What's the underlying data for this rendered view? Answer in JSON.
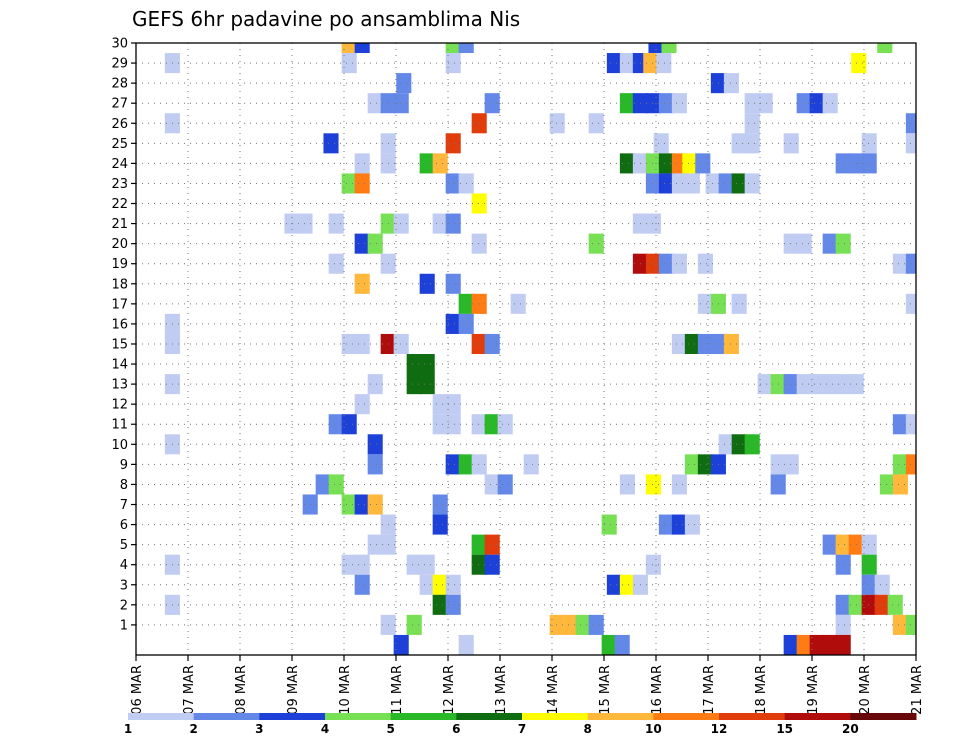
{
  "chart_data": {
    "type": "heatmap",
    "title": "GEFS 6hr padavine po ansamblima Nis",
    "x_tick_labels": [
      "06 MAR",
      "07 MAR",
      "08 MAR",
      "09 MAR",
      "10 MAR",
      "11 MAR",
      "12 MAR",
      "13 MAR",
      "14 MAR",
      "15 MAR",
      "16 MAR",
      "17 MAR",
      "18 MAR",
      "19 MAR",
      "20 MAR",
      "21 MAR"
    ],
    "x_start_day": 6,
    "x_end_day": 21,
    "y_ticks": [
      1,
      2,
      3,
      4,
      5,
      6,
      7,
      8,
      9,
      10,
      11,
      12,
      13,
      14,
      15,
      16,
      17,
      18,
      19,
      20,
      21,
      22,
      23,
      24,
      25,
      26,
      27,
      28,
      29,
      30
    ],
    "ylim": [
      0,
      30
    ],
    "grid": true,
    "colorbar": {
      "labels": [
        "1",
        "2",
        "3",
        "4",
        "5",
        "6",
        "7",
        "8",
        "10",
        "12",
        "15",
        "20"
      ],
      "colors": [
        "#c0ccf2",
        "#6488e8",
        "#1c40d8",
        "#78e054",
        "#28b828",
        "#106c10",
        "#ffff00",
        "#ffb83c",
        "#ff7c14",
        "#e03c0c",
        "#b00c0c",
        "#680808"
      ]
    },
    "cells": [
      {
        "x": 10.1,
        "y": 30,
        "c": 7
      },
      {
        "x": 10.35,
        "y": 30,
        "c": 2
      },
      {
        "x": 12.1,
        "y": 30,
        "c": 3
      },
      {
        "x": 12.35,
        "y": 30,
        "c": 1
      },
      {
        "x": 16.0,
        "y": 30,
        "c": 2
      },
      {
        "x": 16.25,
        "y": 30,
        "c": 3
      },
      {
        "x": 20.4,
        "y": 30,
        "c": 3
      },
      {
        "x": 6.7,
        "y": 29,
        "c": 0
      },
      {
        "x": 10.1,
        "y": 29,
        "c": 0
      },
      {
        "x": 12.1,
        "y": 29,
        "c": 0
      },
      {
        "x": 15.2,
        "y": 29,
        "c": 2
      },
      {
        "x": 15.45,
        "y": 29,
        "c": 0
      },
      {
        "x": 15.7,
        "y": 29,
        "c": 2
      },
      {
        "x": 15.9,
        "y": 29,
        "c": 7
      },
      {
        "x": 16.15,
        "y": 29,
        "c": 0
      },
      {
        "x": 19.9,
        "y": 29,
        "c": 6
      },
      {
        "x": 11.15,
        "y": 28,
        "c": 1
      },
      {
        "x": 17.2,
        "y": 28,
        "c": 2
      },
      {
        "x": 17.45,
        "y": 28,
        "c": 0
      },
      {
        "x": 10.6,
        "y": 27,
        "c": 0
      },
      {
        "x": 10.85,
        "y": 27,
        "c": 1
      },
      {
        "x": 11.1,
        "y": 27,
        "c": 1
      },
      {
        "x": 12.85,
        "y": 27,
        "c": 1
      },
      {
        "x": 15.45,
        "y": 27,
        "c": 4
      },
      {
        "x": 15.7,
        "y": 27,
        "c": 2
      },
      {
        "x": 15.95,
        "y": 27,
        "c": 2
      },
      {
        "x": 16.2,
        "y": 27,
        "c": 1
      },
      {
        "x": 16.45,
        "y": 27,
        "c": 0
      },
      {
        "x": 17.85,
        "y": 27,
        "c": 0
      },
      {
        "x": 18.1,
        "y": 27,
        "c": 0
      },
      {
        "x": 18.85,
        "y": 27,
        "c": 1
      },
      {
        "x": 19.1,
        "y": 27,
        "c": 2
      },
      {
        "x": 19.35,
        "y": 27,
        "c": 0
      },
      {
        "x": 6.7,
        "y": 26,
        "c": 0
      },
      {
        "x": 12.6,
        "y": 26,
        "c": 9
      },
      {
        "x": 14.1,
        "y": 26,
        "c": 0
      },
      {
        "x": 14.85,
        "y": 26,
        "c": 0
      },
      {
        "x": 17.85,
        "y": 26,
        "c": 0
      },
      {
        "x": 20.95,
        "y": 26,
        "c": 1
      },
      {
        "x": 9.75,
        "y": 25,
        "c": 2
      },
      {
        "x": 10.85,
        "y": 25,
        "c": 0
      },
      {
        "x": 12.1,
        "y": 25,
        "c": 9
      },
      {
        "x": 16.1,
        "y": 25,
        "c": 0
      },
      {
        "x": 17.6,
        "y": 25,
        "c": 0
      },
      {
        "x": 17.85,
        "y": 25,
        "c": 0
      },
      {
        "x": 18.6,
        "y": 25,
        "c": 0
      },
      {
        "x": 20.1,
        "y": 25,
        "c": 0
      },
      {
        "x": 20.95,
        "y": 25,
        "c": 0
      },
      {
        "x": 10.35,
        "y": 24,
        "c": 0
      },
      {
        "x": 10.85,
        "y": 24,
        "c": 0
      },
      {
        "x": 11.6,
        "y": 24,
        "c": 4
      },
      {
        "x": 11.85,
        "y": 24,
        "c": 7
      },
      {
        "x": 15.45,
        "y": 24,
        "c": 5
      },
      {
        "x": 15.7,
        "y": 24,
        "c": 0
      },
      {
        "x": 15.95,
        "y": 24,
        "c": 3
      },
      {
        "x": 16.2,
        "y": 24,
        "c": 5
      },
      {
        "x": 16.45,
        "y": 24,
        "c": 8
      },
      {
        "x": 16.65,
        "y": 24,
        "c": 6
      },
      {
        "x": 16.9,
        "y": 24,
        "c": 1
      },
      {
        "x": 19.6,
        "y": 24,
        "c": 1
      },
      {
        "x": 19.85,
        "y": 24,
        "c": 1
      },
      {
        "x": 20.1,
        "y": 24,
        "c": 1
      },
      {
        "x": 10.1,
        "y": 23,
        "c": 3
      },
      {
        "x": 10.35,
        "y": 23,
        "c": 8
      },
      {
        "x": 12.1,
        "y": 23,
        "c": 1
      },
      {
        "x": 12.35,
        "y": 23,
        "c": 0
      },
      {
        "x": 15.95,
        "y": 23,
        "c": 1
      },
      {
        "x": 16.2,
        "y": 23,
        "c": 2
      },
      {
        "x": 16.45,
        "y": 23,
        "c": 0
      },
      {
        "x": 16.7,
        "y": 23,
        "c": 0
      },
      {
        "x": 17.1,
        "y": 23,
        "c": 0
      },
      {
        "x": 17.35,
        "y": 23,
        "c": 1
      },
      {
        "x": 17.6,
        "y": 23,
        "c": 5
      },
      {
        "x": 17.85,
        "y": 23,
        "c": 0
      },
      {
        "x": 12.6,
        "y": 22,
        "c": 6
      },
      {
        "x": 9.0,
        "y": 21,
        "c": 0
      },
      {
        "x": 9.25,
        "y": 21,
        "c": 0
      },
      {
        "x": 9.85,
        "y": 21,
        "c": 0
      },
      {
        "x": 10.85,
        "y": 21,
        "c": 3
      },
      {
        "x": 11.1,
        "y": 21,
        "c": 0
      },
      {
        "x": 11.85,
        "y": 21,
        "c": 0
      },
      {
        "x": 12.1,
        "y": 21,
        "c": 1
      },
      {
        "x": 15.7,
        "y": 21,
        "c": 0
      },
      {
        "x": 15.95,
        "y": 21,
        "c": 0
      },
      {
        "x": 10.35,
        "y": 20,
        "c": 2
      },
      {
        "x": 10.6,
        "y": 20,
        "c": 3
      },
      {
        "x": 12.6,
        "y": 20,
        "c": 0
      },
      {
        "x": 14.85,
        "y": 20,
        "c": 3
      },
      {
        "x": 18.6,
        "y": 20,
        "c": 0
      },
      {
        "x": 18.85,
        "y": 20,
        "c": 0
      },
      {
        "x": 19.35,
        "y": 20,
        "c": 1
      },
      {
        "x": 19.6,
        "y": 20,
        "c": 3
      },
      {
        "x": 9.85,
        "y": 19,
        "c": 0
      },
      {
        "x": 10.85,
        "y": 19,
        "c": 0
      },
      {
        "x": 15.7,
        "y": 19,
        "c": 10
      },
      {
        "x": 15.95,
        "y": 19,
        "c": 9
      },
      {
        "x": 16.2,
        "y": 19,
        "c": 1
      },
      {
        "x": 16.45,
        "y": 19,
        "c": 0
      },
      {
        "x": 16.95,
        "y": 19,
        "c": 0
      },
      {
        "x": 20.7,
        "y": 19,
        "c": 0
      },
      {
        "x": 20.95,
        "y": 19,
        "c": 1
      },
      {
        "x": 10.35,
        "y": 18,
        "c": 7
      },
      {
        "x": 11.6,
        "y": 18,
        "c": 2
      },
      {
        "x": 12.1,
        "y": 18,
        "c": 1
      },
      {
        "x": 12.35,
        "y": 17,
        "c": 4
      },
      {
        "x": 12.6,
        "y": 17,
        "c": 8
      },
      {
        "x": 13.35,
        "y": 17,
        "c": 0
      },
      {
        "x": 16.95,
        "y": 17,
        "c": 0
      },
      {
        "x": 17.2,
        "y": 17,
        "c": 3
      },
      {
        "x": 17.6,
        "y": 17,
        "c": 0
      },
      {
        "x": 20.95,
        "y": 17,
        "c": 0
      },
      {
        "x": 6.7,
        "y": 16,
        "c": 0
      },
      {
        "x": 12.1,
        "y": 16,
        "c": 2
      },
      {
        "x": 12.35,
        "y": 16,
        "c": 1
      },
      {
        "x": 6.7,
        "y": 15,
        "c": 0
      },
      {
        "x": 10.1,
        "y": 15,
        "c": 0
      },
      {
        "x": 10.35,
        "y": 15,
        "c": 0
      },
      {
        "x": 10.85,
        "y": 15,
        "c": 10
      },
      {
        "x": 11.1,
        "y": 15,
        "c": 0
      },
      {
        "x": 12.6,
        "y": 15,
        "c": 9
      },
      {
        "x": 12.85,
        "y": 15,
        "c": 1
      },
      {
        "x": 16.45,
        "y": 15,
        "c": 0
      },
      {
        "x": 16.7,
        "y": 15,
        "c": 5
      },
      {
        "x": 16.95,
        "y": 15,
        "c": 1
      },
      {
        "x": 17.2,
        "y": 15,
        "c": 1
      },
      {
        "x": 17.45,
        "y": 15,
        "c": 7
      },
      {
        "x": 6.7,
        "y": 13,
        "c": 0
      },
      {
        "x": 10.6,
        "y": 13,
        "c": 0
      },
      {
        "x": 11.35,
        "y": 13.5,
        "c": 5,
        "h": 2
      },
      {
        "x": 11.6,
        "y": 13.5,
        "c": 5,
        "h": 2
      },
      {
        "x": 18.1,
        "y": 13,
        "c": 0
      },
      {
        "x": 18.35,
        "y": 13,
        "c": 3
      },
      {
        "x": 18.6,
        "y": 13,
        "c": 1
      },
      {
        "x": 18.85,
        "y": 13,
        "c": 0
      },
      {
        "x": 19.1,
        "y": 13,
        "c": 0
      },
      {
        "x": 19.35,
        "y": 13,
        "c": 0
      },
      {
        "x": 19.6,
        "y": 13,
        "c": 0
      },
      {
        "x": 19.85,
        "y": 13,
        "c": 0
      },
      {
        "x": 10.35,
        "y": 12,
        "c": 0
      },
      {
        "x": 11.85,
        "y": 12,
        "c": 0
      },
      {
        "x": 12.1,
        "y": 12,
        "c": 0
      },
      {
        "x": 9.85,
        "y": 11,
        "c": 1
      },
      {
        "x": 10.1,
        "y": 11,
        "c": 2
      },
      {
        "x": 11.85,
        "y": 11,
        "c": 0
      },
      {
        "x": 12.1,
        "y": 11,
        "c": 0
      },
      {
        "x": 12.6,
        "y": 11,
        "c": 0
      },
      {
        "x": 12.85,
        "y": 11,
        "c": 4
      },
      {
        "x": 13.1,
        "y": 11,
        "c": 0
      },
      {
        "x": 20.7,
        "y": 11,
        "c": 1
      },
      {
        "x": 20.95,
        "y": 11,
        "c": 0
      },
      {
        "x": 6.7,
        "y": 10,
        "c": 0
      },
      {
        "x": 10.6,
        "y": 10,
        "c": 2
      },
      {
        "x": 17.35,
        "y": 10,
        "c": 0
      },
      {
        "x": 17.6,
        "y": 10,
        "c": 5
      },
      {
        "x": 17.85,
        "y": 10,
        "c": 4
      },
      {
        "x": 10.6,
        "y": 9,
        "c": 1
      },
      {
        "x": 12.1,
        "y": 9,
        "c": 2
      },
      {
        "x": 12.35,
        "y": 9,
        "c": 4
      },
      {
        "x": 12.6,
        "y": 9,
        "c": 0
      },
      {
        "x": 13.6,
        "y": 9,
        "c": 0
      },
      {
        "x": 16.7,
        "y": 9,
        "c": 3
      },
      {
        "x": 16.95,
        "y": 9,
        "c": 5
      },
      {
        "x": 17.2,
        "y": 9,
        "c": 2
      },
      {
        "x": 18.35,
        "y": 9,
        "c": 0
      },
      {
        "x": 18.6,
        "y": 9,
        "c": 0
      },
      {
        "x": 20.7,
        "y": 9,
        "c": 3
      },
      {
        "x": 20.95,
        "y": 9,
        "c": 8
      },
      {
        "x": 9.6,
        "y": 8,
        "c": 1
      },
      {
        "x": 9.85,
        "y": 8,
        "c": 3
      },
      {
        "x": 12.85,
        "y": 8,
        "c": 0
      },
      {
        "x": 13.1,
        "y": 8,
        "c": 1
      },
      {
        "x": 15.45,
        "y": 8,
        "c": 0
      },
      {
        "x": 15.95,
        "y": 8,
        "c": 6
      },
      {
        "x": 16.45,
        "y": 8,
        "c": 0
      },
      {
        "x": 18.35,
        "y": 8,
        "c": 1
      },
      {
        "x": 20.45,
        "y": 8,
        "c": 3
      },
      {
        "x": 20.7,
        "y": 8,
        "c": 7
      },
      {
        "x": 9.35,
        "y": 7,
        "c": 1
      },
      {
        "x": 10.1,
        "y": 7,
        "c": 3
      },
      {
        "x": 10.35,
        "y": 7,
        "c": 2
      },
      {
        "x": 10.6,
        "y": 7,
        "c": 7
      },
      {
        "x": 11.85,
        "y": 7,
        "c": 1
      },
      {
        "x": 10.85,
        "y": 6,
        "c": 0
      },
      {
        "x": 11.85,
        "y": 6,
        "c": 2
      },
      {
        "x": 15.1,
        "y": 6,
        "c": 3
      },
      {
        "x": 16.2,
        "y": 6,
        "c": 1
      },
      {
        "x": 16.45,
        "y": 6,
        "c": 2
      },
      {
        "x": 16.7,
        "y": 6,
        "c": 0
      },
      {
        "x": 10.6,
        "y": 5,
        "c": 0
      },
      {
        "x": 10.85,
        "y": 5,
        "c": 0
      },
      {
        "x": 12.6,
        "y": 5,
        "c": 4
      },
      {
        "x": 12.85,
        "y": 5,
        "c": 9
      },
      {
        "x": 19.35,
        "y": 5,
        "c": 1
      },
      {
        "x": 19.6,
        "y": 5,
        "c": 7
      },
      {
        "x": 19.85,
        "y": 5,
        "c": 8
      },
      {
        "x": 20.1,
        "y": 5,
        "c": 0
      },
      {
        "x": 6.7,
        "y": 4,
        "c": 0
      },
      {
        "x": 10.1,
        "y": 4,
        "c": 0
      },
      {
        "x": 10.35,
        "y": 4,
        "c": 0
      },
      {
        "x": 11.35,
        "y": 4,
        "c": 0
      },
      {
        "x": 11.6,
        "y": 4,
        "c": 0
      },
      {
        "x": 12.6,
        "y": 4,
        "c": 5
      },
      {
        "x": 12.85,
        "y": 4,
        "c": 2
      },
      {
        "x": 15.95,
        "y": 4,
        "c": 0
      },
      {
        "x": 19.6,
        "y": 4,
        "c": 1
      },
      {
        "x": 20.1,
        "y": 4,
        "c": 4
      },
      {
        "x": 10.35,
        "y": 3,
        "c": 1
      },
      {
        "x": 11.6,
        "y": 3,
        "c": 0
      },
      {
        "x": 11.85,
        "y": 3,
        "c": 6
      },
      {
        "x": 12.1,
        "y": 3,
        "c": 0
      },
      {
        "x": 15.2,
        "y": 3,
        "c": 2
      },
      {
        "x": 15.45,
        "y": 3,
        "c": 6
      },
      {
        "x": 15.7,
        "y": 3,
        "c": 0
      },
      {
        "x": 20.1,
        "y": 3,
        "c": 1
      },
      {
        "x": 20.35,
        "y": 3,
        "c": 0
      },
      {
        "x": 6.7,
        "y": 2,
        "c": 0
      },
      {
        "x": 11.85,
        "y": 2,
        "c": 5
      },
      {
        "x": 12.1,
        "y": 2,
        "c": 1
      },
      {
        "x": 19.6,
        "y": 2,
        "c": 1
      },
      {
        "x": 19.85,
        "y": 2,
        "c": 3
      },
      {
        "x": 20.1,
        "y": 2,
        "c": 10
      },
      {
        "x": 20.35,
        "y": 2,
        "c": 9
      },
      {
        "x": 20.6,
        "y": 2,
        "c": 3
      },
      {
        "x": 10.85,
        "y": 1,
        "c": 0
      },
      {
        "x": 11.35,
        "y": 1,
        "c": 3
      },
      {
        "x": 14.1,
        "y": 1,
        "c": 7
      },
      {
        "x": 14.35,
        "y": 1,
        "c": 7
      },
      {
        "x": 14.6,
        "y": 1,
        "c": 3
      },
      {
        "x": 14.85,
        "y": 1,
        "c": 1
      },
      {
        "x": 19.6,
        "y": 1,
        "c": 0
      },
      {
        "x": 20.7,
        "y": 1,
        "c": 7
      },
      {
        "x": 20.95,
        "y": 1,
        "c": 3
      },
      {
        "x": 11.1,
        "y": 0,
        "c": 2
      },
      {
        "x": 12.35,
        "y": 0,
        "c": 0
      },
      {
        "x": 15.1,
        "y": 0,
        "c": 4
      },
      {
        "x": 15.35,
        "y": 0,
        "c": 1
      },
      {
        "x": 18.6,
        "y": 0,
        "c": 2
      },
      {
        "x": 18.85,
        "y": 0,
        "c": 8
      },
      {
        "x": 19.1,
        "y": 0,
        "c": 10
      },
      {
        "x": 19.35,
        "y": 0,
        "c": 10
      },
      {
        "x": 19.6,
        "y": 0,
        "c": 10
      }
    ]
  }
}
